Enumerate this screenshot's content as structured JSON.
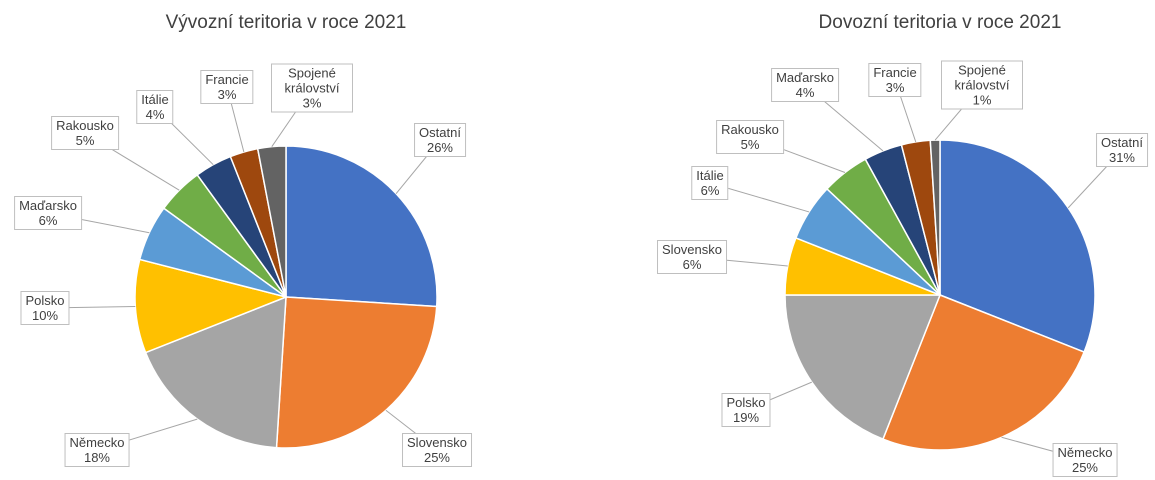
{
  "chart_data": [
    {
      "type": "pie",
      "title": "Vývozní teritoria v roce 2021",
      "categories": [
        "Ostatní",
        "Slovensko",
        "Německo",
        "Polsko",
        "Maďarsko",
        "Rakousko",
        "Itálie",
        "Francie",
        "Spojené království"
      ],
      "values": [
        26,
        25,
        18,
        10,
        6,
        5,
        4,
        3,
        3
      ],
      "value_labels": [
        "26%",
        "25%",
        "18%",
        "10%",
        "6%",
        "5%",
        "4%",
        "3%",
        "3%"
      ],
      "colors": [
        "#4472c4",
        "#ed7d31",
        "#a5a5a5",
        "#ffc000",
        "#5b9bd5",
        "#70ad47",
        "#264478",
        "#9e480e",
        "#636363"
      ]
    },
    {
      "type": "pie",
      "title": "Dovozní teritoria v roce 2021",
      "categories": [
        "Ostatní",
        "Německo",
        "Polsko",
        "Slovensko",
        "Itálie",
        "Rakousko",
        "Maďarsko",
        "Francie",
        "Spojené království"
      ],
      "values": [
        31,
        25,
        19,
        6,
        6,
        5,
        4,
        3,
        1
      ],
      "value_labels": [
        "31%",
        "25%",
        "19%",
        "6%",
        "6%",
        "5%",
        "4%",
        "3%",
        "1%"
      ],
      "colors": [
        "#4472c4",
        "#ed7d31",
        "#a5a5a5",
        "#ffc000",
        "#5b9bd5",
        "#70ad47",
        "#264478",
        "#9e480e",
        "#636363"
      ]
    }
  ]
}
